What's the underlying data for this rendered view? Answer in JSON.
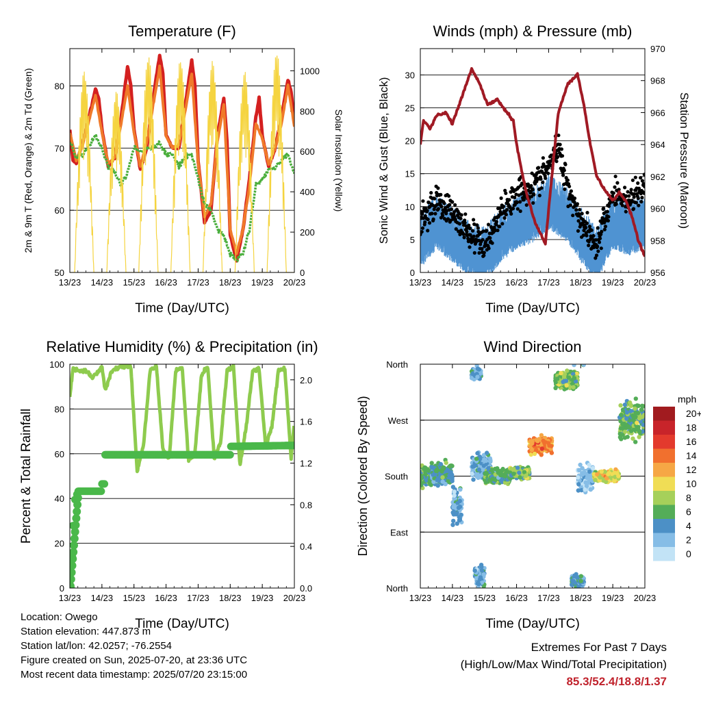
{
  "chart_data": [
    {
      "type": "line",
      "title": "Temperature (F)",
      "xlabel": "Time (Day/UTC)",
      "ylabel": "2m & 9m T (Red, Orange) & 2m Td (Green)",
      "y2label": "Solar Insolation (Yellow)",
      "x_ticks": [
        "13/23",
        "14/23",
        "15/23",
        "16/23",
        "17/23",
        "18/23",
        "19/23",
        "20/23"
      ],
      "ylim": [
        50,
        86
      ],
      "y_ticks": [
        50,
        60,
        70,
        80
      ],
      "y2lim": [
        0,
        1110
      ],
      "y2_ticks": [
        0,
        200,
        400,
        600,
        800,
        1000
      ],
      "grid": true,
      "series": [
        {
          "key": "t2m",
          "color": "#d42020",
          "axis": "left",
          "x": [
            0,
            0.1,
            0.2,
            0.4,
            0.6,
            0.8,
            0.9,
            1.0,
            1.2,
            1.4,
            1.6,
            1.8,
            1.9,
            2.0,
            2.2,
            2.4,
            2.6,
            2.8,
            2.9,
            3.0,
            3.2,
            3.4,
            3.6,
            3.8,
            3.9,
            4.0,
            4.2,
            4.4,
            4.6,
            4.8,
            4.9,
            5.0,
            5.2,
            5.4,
            5.6,
            5.8,
            5.9,
            6.0,
            6.2,
            6.4,
            6.6,
            6.8,
            6.9,
            7.0
          ],
          "y": [
            73,
            68,
            67.5,
            71,
            75,
            79.5,
            78,
            73,
            67,
            68.5,
            75,
            83,
            80,
            73,
            66.5,
            70,
            78,
            85,
            82,
            72,
            70,
            70,
            77,
            84,
            80,
            68,
            58,
            60,
            72,
            78,
            71,
            56,
            52,
            57,
            65,
            75,
            78,
            72,
            67,
            70,
            75,
            81,
            79,
            74
          ]
        },
        {
          "key": "t9m",
          "color": "#f07a2a",
          "axis": "left",
          "x": [
            0,
            0.2,
            0.4,
            0.6,
            0.8,
            1.0,
            1.2,
            1.4,
            1.6,
            1.8,
            2.0,
            2.2,
            2.4,
            2.6,
            2.8,
            3.0,
            3.2,
            3.4,
            3.6,
            3.8,
            4.0,
            4.2,
            4.4,
            4.6,
            4.8,
            5.0,
            5.2,
            5.4,
            5.6,
            5.8,
            6.0,
            6.2,
            6.4,
            6.6,
            6.8,
            7.0
          ],
          "y": [
            72.5,
            68,
            70.5,
            74.5,
            78.5,
            72.5,
            67.5,
            68.5,
            74,
            80,
            72.5,
            67,
            71,
            77,
            83,
            72,
            70,
            70.5,
            76,
            82,
            67.5,
            59,
            61,
            71,
            77,
            57,
            53,
            57,
            64,
            74,
            71.5,
            67.5,
            70,
            74,
            80,
            73.5
          ]
        },
        {
          "key": "td2m",
          "color": "#4aae3c",
          "axis": "left",
          "x": [
            0,
            0.2,
            0.4,
            0.6,
            0.8,
            1.0,
            1.2,
            1.4,
            1.6,
            1.8,
            2.0,
            2.2,
            2.4,
            2.6,
            2.8,
            3.0,
            3.2,
            3.4,
            3.6,
            3.8,
            4.0,
            4.2,
            4.4,
            4.6,
            4.8,
            5.0,
            5.2,
            5.4,
            5.6,
            5.8,
            6.0,
            6.2,
            6.4,
            6.6,
            6.8,
            7.0
          ],
          "y": [
            71,
            68.5,
            69,
            70.5,
            72,
            70,
            67,
            66,
            64,
            66,
            70,
            69.5,
            70,
            70,
            71,
            69,
            69,
            67,
            68.5,
            69,
            65,
            61,
            60,
            57,
            56,
            53,
            52,
            53,
            57,
            64,
            65,
            66.5,
            67,
            68,
            69,
            66
          ]
        },
        {
          "key": "solar",
          "color": "#f5d440",
          "axis": "right",
          "kind": "diurnal",
          "days": [
            0,
            1,
            2,
            3,
            4,
            5,
            6
          ],
          "peaks": [
            1000,
            900,
            1080,
            1060,
            1050,
            1000,
            1100
          ]
        }
      ]
    },
    {
      "type": "line",
      "title": "Winds (mph) & Pressure (mb)",
      "xlabel": "Time (Day/UTC)",
      "ylabel": "Sonic Wind & Gust (Blue, Black)",
      "y2label": "Station Pressure (Maroon)",
      "x_ticks": [
        "13/23",
        "14/23",
        "15/23",
        "16/23",
        "17/23",
        "18/23",
        "19/23",
        "20/23"
      ],
      "ylim": [
        0,
        34
      ],
      "y_ticks": [
        0,
        5,
        10,
        15,
        20,
        25,
        30
      ],
      "y2lim": [
        956,
        970
      ],
      "y2_ticks": [
        956,
        958,
        960,
        962,
        964,
        966,
        968,
        970
      ],
      "grid": true,
      "series": [
        {
          "key": "wind",
          "color": "#4f93d2",
          "axis": "left",
          "x": [
            0,
            0.5,
            1.0,
            1.5,
            2.0,
            2.5,
            3.0,
            3.5,
            4.0,
            4.3,
            4.6,
            5.0,
            5.5,
            6.0,
            6.5,
            7.0
          ],
          "y": [
            5,
            8,
            6,
            4,
            3,
            6,
            8,
            9,
            11,
            10,
            9,
            6,
            3,
            8,
            7,
            8
          ]
        },
        {
          "key": "gust",
          "color": "#000000",
          "axis": "left",
          "x": [
            0,
            0.5,
            1.0,
            1.5,
            2.0,
            2.5,
            3.0,
            3.5,
            4.0,
            4.3,
            4.6,
            5.0,
            5.5,
            6.0,
            6.5,
            7.0
          ],
          "y": [
            8,
            11,
            9,
            6,
            4,
            9,
            12,
            13,
            16,
            19,
            13,
            8,
            4,
            12,
            11,
            13
          ]
        },
        {
          "key": "pressure",
          "color": "#a01a24",
          "axis": "right",
          "x": [
            0,
            0.1,
            0.3,
            0.5,
            0.8,
            1.0,
            1.3,
            1.6,
            1.8,
            2.1,
            2.4,
            2.7,
            2.9,
            3.0,
            3.3,
            3.6,
            3.9,
            4.1,
            4.3,
            4.6,
            4.9,
            5.1,
            5.3,
            5.5,
            5.8,
            6.0,
            6.2,
            6.4,
            6.6,
            6.8,
            7.0
          ],
          "y": [
            964,
            965.5,
            965,
            965.8,
            966,
            965.3,
            967,
            968.7,
            968,
            966.5,
            966.8,
            966,
            965.5,
            964,
            961,
            959,
            957.8,
            962,
            966,
            967.8,
            968.4,
            966.5,
            964,
            962,
            961,
            960.5,
            961,
            960.5,
            959.5,
            958,
            957
          ]
        }
      ]
    },
    {
      "type": "line",
      "title": "Relative Humidity (%) & Precipitation (in)",
      "xlabel": "Time (Day/UTC)",
      "ylabel": "Percent & Total Rainfall",
      "x_ticks": [
        "13/23",
        "14/23",
        "15/23",
        "16/23",
        "17/23",
        "18/23",
        "19/23",
        "20/23"
      ],
      "ylim": [
        0,
        100
      ],
      "y_ticks": [
        0,
        20,
        40,
        60,
        80,
        100
      ],
      "y2lim": [
        0,
        2.15
      ],
      "y2_ticks": [
        "0.0",
        "0.4",
        "0.8",
        "1.2",
        "1.6",
        "2.0"
      ],
      "grid": true,
      "series": [
        {
          "key": "rh",
          "color": "#8ecb4e",
          "axis": "left",
          "x": [
            0,
            0.1,
            0.3,
            0.5,
            0.7,
            0.9,
            1.0,
            1.1,
            1.3,
            1.6,
            1.9,
            2.1,
            2.3,
            2.5,
            2.7,
            2.9,
            3.1,
            3.3,
            3.5,
            3.7,
            3.9,
            4.1,
            4.3,
            4.5,
            4.7,
            4.9,
            5.1,
            5.3,
            5.5,
            5.7,
            5.9,
            6.1,
            6.3,
            6.5,
            6.7,
            6.9,
            7.0
          ],
          "y": [
            86,
            98,
            97,
            97,
            94,
            97,
            99,
            88,
            97,
            99,
            99,
            52,
            64,
            97,
            99,
            62,
            58,
            97,
            99,
            57,
            60,
            95,
            99,
            58,
            65,
            97,
            99,
            55,
            72,
            97,
            98,
            64,
            72,
            97,
            98,
            58,
            74
          ]
        },
        {
          "key": "precip",
          "color": "#4ab84a",
          "axis": "right",
          "kind": "step",
          "x": [
            0,
            0.05,
            0.1,
            0.15,
            0.2,
            0.25,
            1.0,
            1.1,
            1.15,
            5.0,
            7.0
          ],
          "y": [
            0,
            0.3,
            0.6,
            0.85,
            0.9,
            0.93,
            1.0,
            1.28,
            1.28,
            1.36,
            1.37
          ]
        }
      ]
    },
    {
      "type": "scatter",
      "title": "Wind Direction",
      "xlabel": "Time (Day/UTC)",
      "ylabel": "Direction (Colored By Speed)",
      "x_ticks": [
        "13/23",
        "14/23",
        "15/23",
        "16/23",
        "17/23",
        "18/23",
        "19/23",
        "20/23"
      ],
      "y_ticks": [
        "North",
        "East",
        "South",
        "West",
        "North"
      ],
      "grid": true,
      "legend": {
        "title": "mph",
        "placement": "right",
        "labels": [
          "20+",
          "18",
          "16",
          "14",
          "12",
          "10",
          "8",
          "6",
          "4",
          "2",
          "0"
        ],
        "colors": [
          "#a11b1f",
          "#c8242a",
          "#e33a2d",
          "#f1702e",
          "#f6a745",
          "#f0dd55",
          "#a6d05a",
          "#54ad58",
          "#4c90c6",
          "#86bde6",
          "#c2e3f6"
        ]
      },
      "clusters": [
        {
          "x0": 0,
          "x1": 0.35,
          "dir": 180,
          "spread": 22,
          "speed": 6
        },
        {
          "x0": 0.35,
          "x1": 1.0,
          "dir": 185,
          "spread": 26,
          "speed": 5
        },
        {
          "x0": 1.0,
          "x1": 1.3,
          "dir": 130,
          "spread": 40,
          "speed": 3
        },
        {
          "x0": 1.6,
          "x1": 2.2,
          "dir": 195,
          "spread": 30,
          "speed": 3
        },
        {
          "x0": 2.0,
          "x1": 2.8,
          "dir": 180,
          "spread": 16,
          "speed": 6
        },
        {
          "x0": 2.8,
          "x1": 3.4,
          "dir": 185,
          "spread": 14,
          "speed": 7
        },
        {
          "x0": 3.4,
          "x1": 4.1,
          "dir": 230,
          "spread": 18,
          "speed": 13
        },
        {
          "x0": 4.2,
          "x1": 4.9,
          "dir": 335,
          "spread": 20,
          "speed": 7
        },
        {
          "x0": 4.9,
          "x1": 5.4,
          "dir": 175,
          "spread": 30,
          "speed": 2
        },
        {
          "x0": 5.4,
          "x1": 6.2,
          "dir": 180,
          "spread": 12,
          "speed": 10
        },
        {
          "x0": 6.2,
          "x1": 7.0,
          "dir": 270,
          "spread": 40,
          "speed": 6
        },
        {
          "x0": 1.7,
          "x1": 2.0,
          "dir": 20,
          "spread": 30,
          "speed": 3
        },
        {
          "x0": 4.7,
          "x1": 5.1,
          "dir": 10,
          "spread": 15,
          "speed": 4
        },
        {
          "x0": 1.6,
          "x1": 1.9,
          "dir": 345,
          "spread": 12,
          "speed": 3
        }
      ]
    }
  ],
  "footer": {
    "location": "Location: Owego",
    "elevation": "Station elevation: 447.873 m",
    "latlon": "Station lat/lon: 42.0257; -76.2554",
    "created": "Figure created on Sun, 2025-07-20, at 23:36 UTC",
    "recent": "Most recent data timestamp: 2025/07/20 23:15:00",
    "extremes_title": "Extremes For Past 7 Days",
    "extremes_subtitle": "(High/Low/Max Wind/Total Precipitation)",
    "extremes_value": "85.3/52.4/18.8/1.37"
  }
}
